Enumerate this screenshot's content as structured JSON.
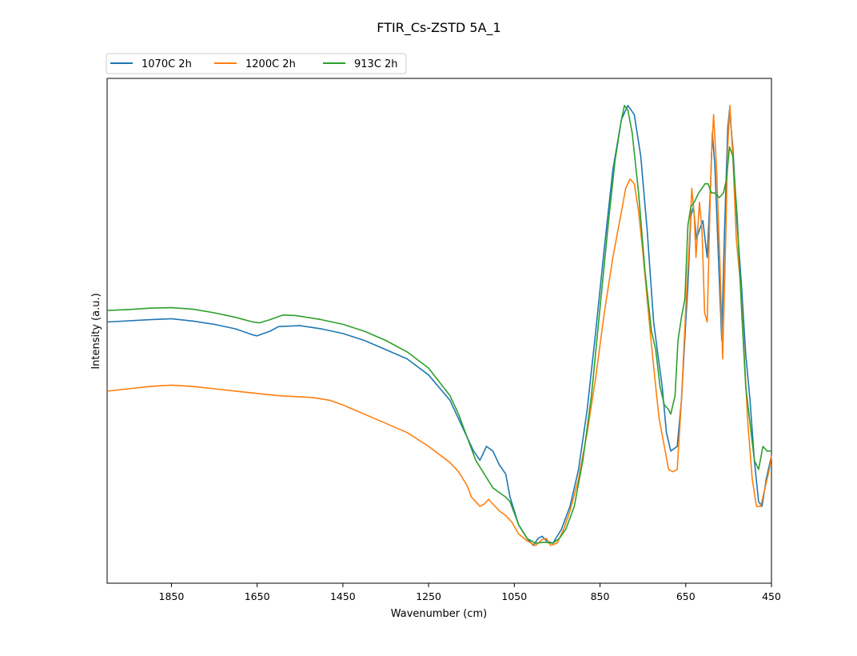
{
  "chart_data": {
    "type": "line",
    "title": "FTIR_Cs-ZSTD 5A_1",
    "xlabel": "Wavenumber (cm)",
    "ylabel": "Intensity (a.u.)",
    "xlim": [
      2000,
      450
    ],
    "x_inverted": true,
    "xticks": [
      "1850",
      "1650",
      "1450",
      "1250",
      "1050",
      "850",
      "650",
      "450"
    ],
    "y_ticks_shown": false,
    "ylim": [
      0,
      1
    ],
    "grid": false,
    "legend": {
      "placement": "above-left",
      "columns": 3
    },
    "series": [
      {
        "name": "1070C 2h",
        "color": "#1f77b4",
        "points": [
          [
            2000,
            0.52
          ],
          [
            1900,
            0.525
          ],
          [
            1850,
            0.527
          ],
          [
            1800,
            0.522
          ],
          [
            1750,
            0.515
          ],
          [
            1700,
            0.505
          ],
          [
            1660,
            0.492
          ],
          [
            1650,
            0.49
          ],
          [
            1620,
            0.5
          ],
          [
            1600,
            0.51
          ],
          [
            1550,
            0.512
          ],
          [
            1500,
            0.505
          ],
          [
            1450,
            0.495
          ],
          [
            1400,
            0.48
          ],
          [
            1350,
            0.46
          ],
          [
            1300,
            0.44
          ],
          [
            1250,
            0.405
          ],
          [
            1200,
            0.35
          ],
          [
            1180,
            0.31
          ],
          [
            1160,
            0.27
          ],
          [
            1145,
            0.24
          ],
          [
            1130,
            0.22
          ],
          [
            1115,
            0.25
          ],
          [
            1100,
            0.24
          ],
          [
            1085,
            0.21
          ],
          [
            1070,
            0.19
          ],
          [
            1060,
            0.14
          ],
          [
            1040,
            0.08
          ],
          [
            1020,
            0.05
          ],
          [
            1005,
            0.035
          ],
          [
            995,
            0.05
          ],
          [
            985,
            0.055
          ],
          [
            975,
            0.045
          ],
          [
            960,
            0.04
          ],
          [
            940,
            0.07
          ],
          [
            920,
            0.12
          ],
          [
            900,
            0.2
          ],
          [
            880,
            0.33
          ],
          [
            860,
            0.5
          ],
          [
            840,
            0.68
          ],
          [
            820,
            0.85
          ],
          [
            800,
            0.96
          ],
          [
            785,
            0.99
          ],
          [
            770,
            0.97
          ],
          [
            755,
            0.88
          ],
          [
            740,
            0.72
          ],
          [
            725,
            0.52
          ],
          [
            715,
            0.45
          ],
          [
            705,
            0.38
          ],
          [
            695,
            0.28
          ],
          [
            685,
            0.24
          ],
          [
            670,
            0.25
          ],
          [
            660,
            0.35
          ],
          [
            650,
            0.52
          ],
          [
            645,
            0.6
          ],
          [
            638,
            0.75
          ],
          [
            632,
            0.77
          ],
          [
            625,
            0.7
          ],
          [
            618,
            0.72
          ],
          [
            610,
            0.74
          ],
          [
            600,
            0.66
          ],
          [
            592,
            0.82
          ],
          [
            588,
            0.93
          ],
          [
            582,
            0.86
          ],
          [
            572,
            0.62
          ],
          [
            566,
            0.48
          ],
          [
            560,
            0.7
          ],
          [
            552,
            0.94
          ],
          [
            548,
            0.98
          ],
          [
            540,
            0.9
          ],
          [
            530,
            0.73
          ],
          [
            520,
            0.6
          ],
          [
            510,
            0.45
          ],
          [
            500,
            0.35
          ],
          [
            490,
            0.22
          ],
          [
            480,
            0.13
          ],
          [
            472,
            0.12
          ],
          [
            462,
            0.18
          ],
          [
            450,
            0.23
          ]
        ]
      },
      {
        "name": "1200C 2h",
        "color": "#ff7f0e",
        "points": [
          [
            2000,
            0.37
          ],
          [
            1950,
            0.375
          ],
          [
            1900,
            0.38
          ],
          [
            1850,
            0.383
          ],
          [
            1800,
            0.38
          ],
          [
            1750,
            0.375
          ],
          [
            1700,
            0.37
          ],
          [
            1650,
            0.365
          ],
          [
            1600,
            0.36
          ],
          [
            1560,
            0.358
          ],
          [
            1520,
            0.356
          ],
          [
            1480,
            0.35
          ],
          [
            1450,
            0.34
          ],
          [
            1400,
            0.32
          ],
          [
            1350,
            0.3
          ],
          [
            1300,
            0.28
          ],
          [
            1250,
            0.25
          ],
          [
            1200,
            0.215
          ],
          [
            1180,
            0.195
          ],
          [
            1160,
            0.165
          ],
          [
            1150,
            0.14
          ],
          [
            1140,
            0.13
          ],
          [
            1130,
            0.12
          ],
          [
            1120,
            0.125
          ],
          [
            1110,
            0.135
          ],
          [
            1100,
            0.125
          ],
          [
            1085,
            0.11
          ],
          [
            1070,
            0.1
          ],
          [
            1055,
            0.085
          ],
          [
            1040,
            0.06
          ],
          [
            1020,
            0.045
          ],
          [
            1000,
            0.035
          ],
          [
            985,
            0.048
          ],
          [
            975,
            0.05
          ],
          [
            965,
            0.035
          ],
          [
            950,
            0.04
          ],
          [
            935,
            0.07
          ],
          [
            920,
            0.11
          ],
          [
            900,
            0.18
          ],
          [
            880,
            0.28
          ],
          [
            860,
            0.4
          ],
          [
            840,
            0.54
          ],
          [
            820,
            0.66
          ],
          [
            800,
            0.76
          ],
          [
            790,
            0.81
          ],
          [
            780,
            0.83
          ],
          [
            770,
            0.82
          ],
          [
            760,
            0.76
          ],
          [
            750,
            0.67
          ],
          [
            740,
            0.57
          ],
          [
            730,
            0.47
          ],
          [
            720,
            0.38
          ],
          [
            712,
            0.31
          ],
          [
            700,
            0.25
          ],
          [
            690,
            0.2
          ],
          [
            680,
            0.195
          ],
          [
            670,
            0.2
          ],
          [
            660,
            0.35
          ],
          [
            650,
            0.55
          ],
          [
            640,
            0.72
          ],
          [
            636,
            0.81
          ],
          [
            630,
            0.75
          ],
          [
            626,
            0.66
          ],
          [
            618,
            0.78
          ],
          [
            612,
            0.72
          ],
          [
            606,
            0.54
          ],
          [
            600,
            0.52
          ],
          [
            594,
            0.75
          ],
          [
            590,
            0.88
          ],
          [
            585,
            0.97
          ],
          [
            578,
            0.85
          ],
          [
            570,
            0.64
          ],
          [
            564,
            0.44
          ],
          [
            558,
            0.65
          ],
          [
            552,
            0.9
          ],
          [
            547,
            0.99
          ],
          [
            540,
            0.88
          ],
          [
            532,
            0.7
          ],
          [
            522,
            0.6
          ],
          [
            512,
            0.42
          ],
          [
            505,
            0.3
          ],
          [
            495,
            0.18
          ],
          [
            485,
            0.12
          ],
          [
            475,
            0.12
          ],
          [
            465,
            0.16
          ],
          [
            455,
            0.2
          ],
          [
            450,
            0.23
          ]
        ]
      },
      {
        "name": "913C 2h",
        "color": "#2ca02c",
        "points": [
          [
            2000,
            0.545
          ],
          [
            1950,
            0.547
          ],
          [
            1900,
            0.55
          ],
          [
            1850,
            0.551
          ],
          [
            1800,
            0.548
          ],
          [
            1750,
            0.54
          ],
          [
            1700,
            0.53
          ],
          [
            1660,
            0.52
          ],
          [
            1645,
            0.518
          ],
          [
            1620,
            0.525
          ],
          [
            1590,
            0.535
          ],
          [
            1560,
            0.534
          ],
          [
            1500,
            0.525
          ],
          [
            1450,
            0.515
          ],
          [
            1400,
            0.5
          ],
          [
            1350,
            0.48
          ],
          [
            1300,
            0.455
          ],
          [
            1250,
            0.42
          ],
          [
            1200,
            0.36
          ],
          [
            1180,
            0.32
          ],
          [
            1160,
            0.27
          ],
          [
            1140,
            0.22
          ],
          [
            1120,
            0.19
          ],
          [
            1100,
            0.16
          ],
          [
            1085,
            0.15
          ],
          [
            1070,
            0.14
          ],
          [
            1060,
            0.13
          ],
          [
            1040,
            0.08
          ],
          [
            1020,
            0.05
          ],
          [
            1000,
            0.04
          ],
          [
            980,
            0.042
          ],
          [
            960,
            0.04
          ],
          [
            945,
            0.05
          ],
          [
            930,
            0.07
          ],
          [
            910,
            0.12
          ],
          [
            890,
            0.22
          ],
          [
            870,
            0.36
          ],
          [
            850,
            0.55
          ],
          [
            830,
            0.74
          ],
          [
            815,
            0.87
          ],
          [
            800,
            0.96
          ],
          [
            793,
            0.99
          ],
          [
            785,
            0.98
          ],
          [
            775,
            0.93
          ],
          [
            760,
            0.8
          ],
          [
            745,
            0.63
          ],
          [
            730,
            0.5
          ],
          [
            720,
            0.46
          ],
          [
            710,
            0.38
          ],
          [
            700,
            0.34
          ],
          [
            690,
            0.33
          ],
          [
            685,
            0.32
          ],
          [
            675,
            0.36
          ],
          [
            668,
            0.48
          ],
          [
            660,
            0.53
          ],
          [
            652,
            0.57
          ],
          [
            645,
            0.73
          ],
          [
            638,
            0.77
          ],
          [
            630,
            0.78
          ],
          [
            620,
            0.8
          ],
          [
            612,
            0.81
          ],
          [
            605,
            0.82
          ],
          [
            598,
            0.82
          ],
          [
            590,
            0.8
          ],
          [
            582,
            0.8
          ],
          [
            572,
            0.79
          ],
          [
            562,
            0.8
          ],
          [
            555,
            0.83
          ],
          [
            548,
            0.9
          ],
          [
            540,
            0.88
          ],
          [
            530,
            0.75
          ],
          [
            520,
            0.55
          ],
          [
            510,
            0.38
          ],
          [
            500,
            0.3
          ],
          [
            490,
            0.22
          ],
          [
            480,
            0.2
          ],
          [
            470,
            0.25
          ],
          [
            460,
            0.24
          ],
          [
            450,
            0.24
          ]
        ]
      }
    ]
  }
}
